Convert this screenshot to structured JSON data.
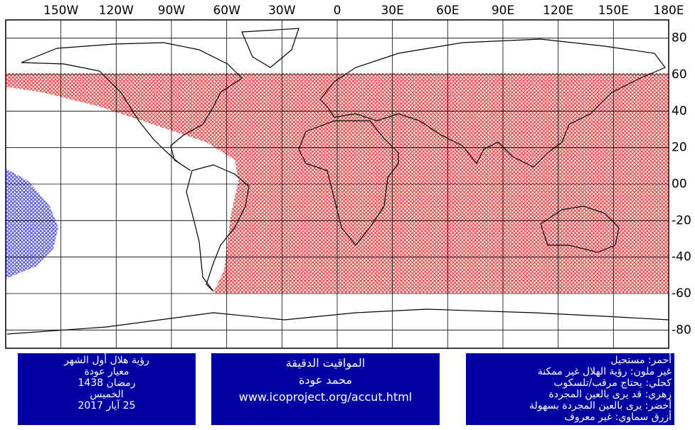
{
  "map": {
    "longitude_labels": [
      "150W",
      "120W",
      "90W",
      "60W",
      "30W",
      "0",
      "30E",
      "60E",
      "90E",
      "120E",
      "150E",
      "180E"
    ],
    "latitude_labels": [
      "80",
      "60",
      "40",
      "20",
      "00",
      "-20",
      "-40",
      "-60",
      "-80"
    ]
  },
  "left_box": {
    "lines": [
      "رؤية هلال أول الشهر",
      "معيار عودة",
      "رمضان 1438",
      "الخميس",
      "25 آيار 2017"
    ]
  },
  "center_box": {
    "lines": [
      "المواقيت الدقيقة",
      "محمد عودة",
      "www.icoproject.org/accut.html"
    ]
  },
  "right_box": {
    "lines": [
      "أحمر: مستحيل",
      "غير ملون: رؤية الهلال غير ممكنة",
      "كحلي: يحتاج مرقب/تلسكوب",
      "زهري: قد يرى بالعين المجردة",
      "أخضر: يرى بالعين المجردة بسهولة",
      "أزرق سماوي: غير معروف"
    ]
  }
}
